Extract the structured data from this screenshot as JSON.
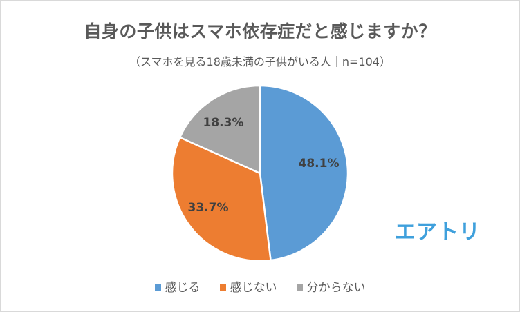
{
  "title": "自身の子供はスマホ依存症だと感じますか？",
  "subtitle": "（スマホを見る18歳未満の子供がいる人｜n=104）",
  "logo": "エアトリ",
  "legend": [
    {
      "label": "感じる",
      "color": "#5B9BD5"
    },
    {
      "label": "感じない",
      "color": "#ED7D31"
    },
    {
      "label": "分からない",
      "color": "#A5A5A5"
    }
  ],
  "labels": {
    "kanjiru": "48.1%",
    "kanjinai": "33.7%",
    "wakaranai": "18.3%"
  },
  "chart_data": {
    "type": "pie",
    "title": "自身の子供はスマホ依存症だと感じますか？",
    "subtitle": "（スマホを見る18歳未満の子供がいる人｜n=104）",
    "categories": [
      "感じる",
      "感じない",
      "分からない"
    ],
    "values": [
      48.1,
      33.7,
      18.3
    ],
    "unit": "%",
    "colors": [
      "#5B9BD5",
      "#ED7D31",
      "#A5A5A5"
    ],
    "start_angle": "12 o'clock, clockwise",
    "legend_position": "bottom",
    "sample_size": 104
  }
}
